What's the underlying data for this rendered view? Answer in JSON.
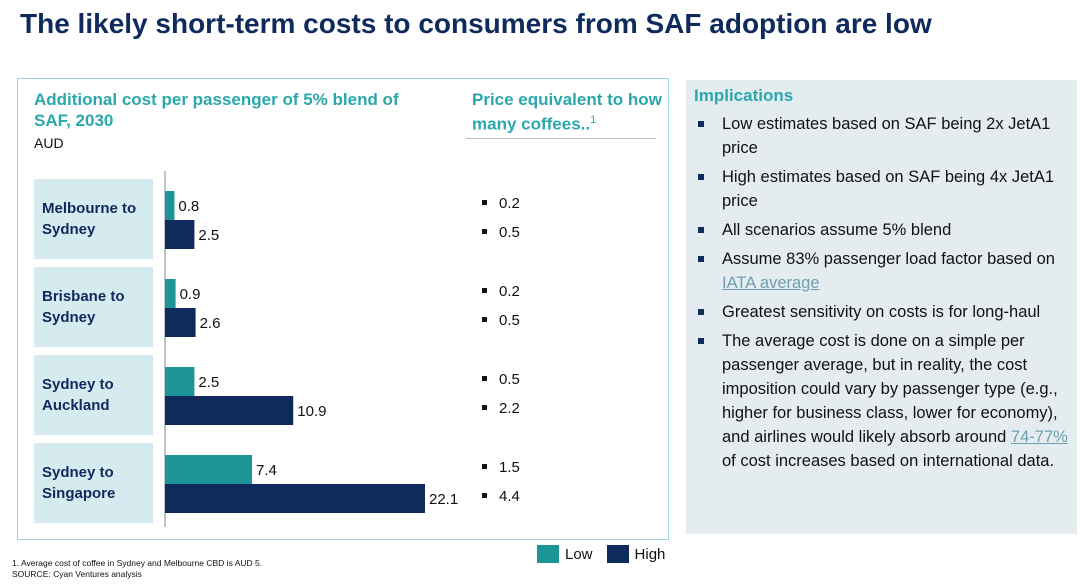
{
  "title": "The likely short-term costs to consumers from SAF adoption are low",
  "chart_data": {
    "type": "bar",
    "title": "Additional cost per passenger of 5% blend of SAF, 2030",
    "unit": "AUD",
    "categories": [
      "Melbourne to Sydney",
      "Brisbane to Sydney",
      "Sydney to Auckland",
      "Sydney to Singapore"
    ],
    "series": [
      {
        "name": "Low",
        "values": [
          0.8,
          0.9,
          2.5,
          7.4
        ],
        "color": "#1d9498"
      },
      {
        "name": "High",
        "values": [
          2.5,
          2.6,
          10.9,
          22.1
        ],
        "color": "#0f2a5c"
      }
    ],
    "orientation": "horizontal",
    "xlim": [
      0,
      22.1
    ],
    "legend_position": "bottom",
    "coffee": {
      "title": "Price equivalent to how many coffees..",
      "footnote_mark": "1",
      "low": [
        "0.2",
        "0.2",
        "0.5",
        "1.5"
      ],
      "high": [
        "0.5",
        "0.5",
        "2.2",
        "4.4"
      ]
    }
  },
  "labels": {
    "cat0": "Melbourne to Sydney",
    "cat1": "Brisbane to Sydney",
    "cat2": "Sydney to Auckland",
    "cat3": "Sydney to Singapore",
    "legend_low": "Low",
    "legend_high": "High"
  },
  "implications": {
    "title": "Implications",
    "items": [
      {
        "pre": "Low estimates based on SAF being 2x JetA1 price"
      },
      {
        "pre": "High estimates based on SAF being 4x JetA1 price"
      },
      {
        "pre": "All scenarios assume 5% blend"
      },
      {
        "pre": "Assume 83% passenger load factor based on ",
        "link": "IATA average",
        "post": ""
      },
      {
        "pre": "Greatest sensitivity on costs is for long-haul"
      },
      {
        "pre": "The average cost is done on a simple per passenger average, but in reality, the cost imposition could vary by passenger type (e.g., higher for business class, lower for economy), and airlines would likely absorb around ",
        "link": "74-77%",
        "post": " of cost increases based on international data."
      }
    ]
  },
  "footnote": {
    "line1": "1. Average cost of coffee in Sydney and Melbourne CBD is AUD 5.",
    "line2": "SOURCE: Cyan Ventures analysis"
  }
}
